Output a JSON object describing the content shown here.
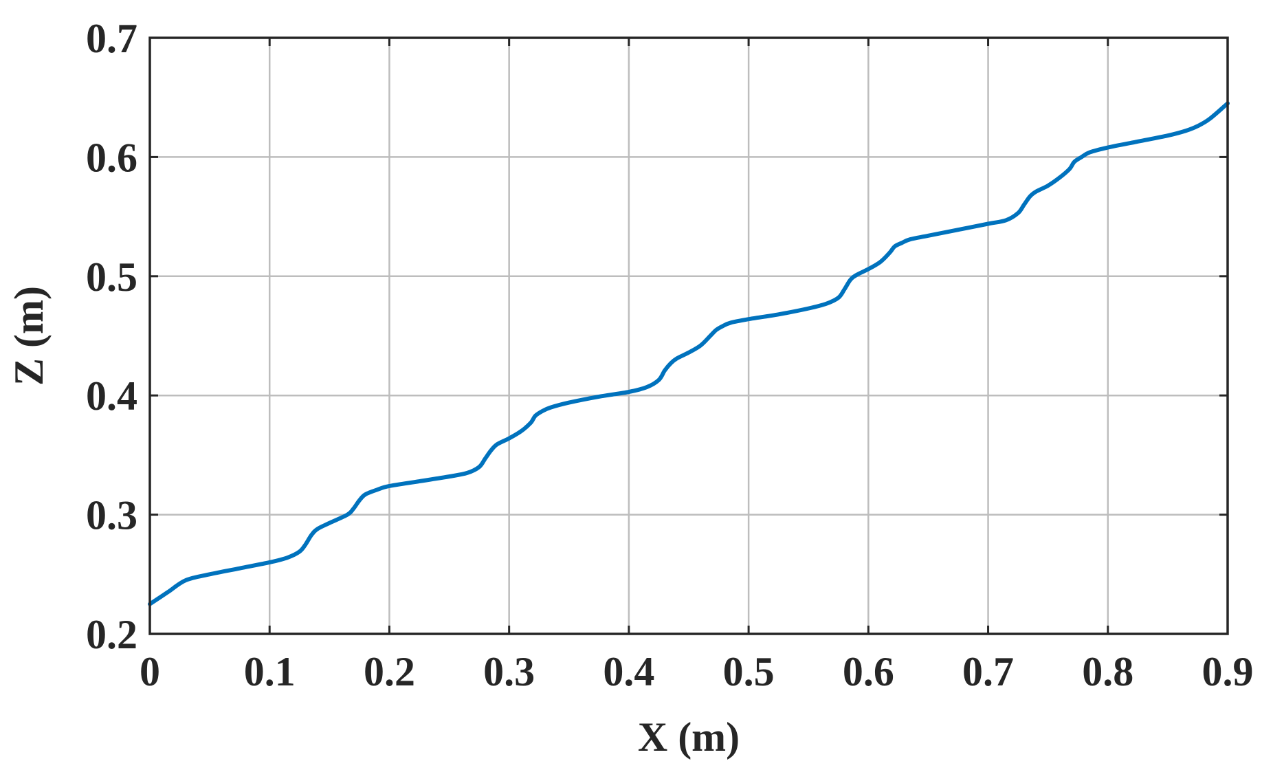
{
  "chart_data": {
    "type": "line",
    "title": "",
    "xlabel": "X (m)",
    "ylabel": "Z (m)",
    "xlim": [
      0,
      0.9
    ],
    "ylim": [
      0.2,
      0.7
    ],
    "xticks": [
      0,
      0.1,
      0.2,
      0.3,
      0.4,
      0.5,
      0.6,
      0.7,
      0.8,
      0.9
    ],
    "xtick_labels": [
      "0",
      "0.1",
      "0.2",
      "0.3",
      "0.4",
      "0.5",
      "0.6",
      "0.7",
      "0.8",
      "0.9"
    ],
    "yticks": [
      0.2,
      0.3,
      0.4,
      0.5,
      0.6,
      0.7
    ],
    "ytick_labels": [
      "0.2",
      "0.3",
      "0.4",
      "0.5",
      "0.6",
      "0.7"
    ],
    "grid": true,
    "legend": "none",
    "series": [
      {
        "color": "#0072BD",
        "x": [
          0,
          0.015,
          0.03,
          0.05,
          0.075,
          0.1,
          0.115,
          0.125,
          0.13,
          0.135,
          0.14,
          0.15,
          0.165,
          0.17,
          0.175,
          0.18,
          0.19,
          0.2,
          0.225,
          0.25,
          0.265,
          0.275,
          0.28,
          0.285,
          0.29,
          0.3,
          0.31,
          0.318,
          0.322,
          0.328,
          0.335,
          0.35,
          0.375,
          0.4,
          0.415,
          0.425,
          0.43,
          0.435,
          0.44,
          0.45,
          0.46,
          0.468,
          0.473,
          0.478,
          0.485,
          0.5,
          0.525,
          0.55,
          0.565,
          0.575,
          0.58,
          0.585,
          0.59,
          0.6,
          0.61,
          0.618,
          0.622,
          0.628,
          0.635,
          0.65,
          0.675,
          0.7,
          0.715,
          0.725,
          0.73,
          0.735,
          0.74,
          0.75,
          0.76,
          0.768,
          0.772,
          0.778,
          0.785,
          0.8,
          0.825,
          0.85,
          0.865,
          0.875,
          0.885,
          0.9
        ],
        "y": [
          0.225,
          0.235,
          0.245,
          0.25,
          0.255,
          0.26,
          0.264,
          0.269,
          0.275,
          0.283,
          0.288,
          0.293,
          0.3,
          0.305,
          0.312,
          0.317,
          0.321,
          0.324,
          0.328,
          0.332,
          0.335,
          0.34,
          0.347,
          0.354,
          0.359,
          0.364,
          0.37,
          0.377,
          0.383,
          0.387,
          0.39,
          0.394,
          0.399,
          0.403,
          0.407,
          0.413,
          0.421,
          0.427,
          0.431,
          0.436,
          0.442,
          0.45,
          0.455,
          0.458,
          0.461,
          0.464,
          0.468,
          0.473,
          0.477,
          0.482,
          0.489,
          0.497,
          0.501,
          0.506,
          0.512,
          0.52,
          0.525,
          0.528,
          0.531,
          0.534,
          0.539,
          0.544,
          0.547,
          0.553,
          0.56,
          0.567,
          0.571,
          0.576,
          0.583,
          0.59,
          0.596,
          0.6,
          0.604,
          0.608,
          0.613,
          0.618,
          0.622,
          0.626,
          0.632,
          0.645
        ]
      }
    ]
  }
}
